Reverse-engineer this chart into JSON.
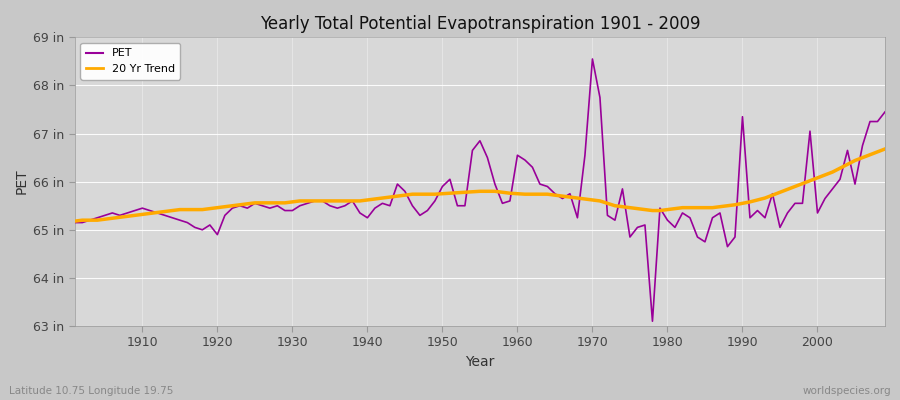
{
  "title": "Yearly Total Potential Evapotranspiration 1901 - 2009",
  "xlabel": "Year",
  "ylabel": "PET",
  "fig_bg_color": "#c8c8c8",
  "plot_bg_color": "#d8d8d8",
  "pet_color": "#990099",
  "trend_color": "#ffaa00",
  "pet_label": "PET",
  "trend_label": "20 Yr Trend",
  "ylim": [
    63,
    69
  ],
  "ytick_labels": [
    "63 in",
    "64 in",
    "65 in",
    "66 in",
    "67 in",
    "68 in",
    "69 in"
  ],
  "ytick_values": [
    63,
    64,
    65,
    66,
    67,
    68,
    69
  ],
  "footer_left": "Latitude 10.75 Longitude 19.75",
  "footer_right": "worldspecies.org",
  "years": [
    1901,
    1902,
    1903,
    1904,
    1905,
    1906,
    1907,
    1908,
    1909,
    1910,
    1911,
    1912,
    1913,
    1914,
    1915,
    1916,
    1917,
    1918,
    1919,
    1920,
    1921,
    1922,
    1923,
    1924,
    1925,
    1926,
    1927,
    1928,
    1929,
    1930,
    1931,
    1932,
    1933,
    1934,
    1935,
    1936,
    1937,
    1938,
    1939,
    1940,
    1941,
    1942,
    1943,
    1944,
    1945,
    1946,
    1947,
    1948,
    1949,
    1950,
    1951,
    1952,
    1953,
    1954,
    1955,
    1956,
    1957,
    1958,
    1959,
    1960,
    1961,
    1962,
    1963,
    1964,
    1965,
    1966,
    1967,
    1968,
    1969,
    1970,
    1971,
    1972,
    1973,
    1974,
    1975,
    1976,
    1977,
    1978,
    1979,
    1980,
    1981,
    1982,
    1983,
    1984,
    1985,
    1986,
    1987,
    1988,
    1989,
    1990,
    1991,
    1992,
    1993,
    1994,
    1995,
    1996,
    1997,
    1998,
    1999,
    2000,
    2001,
    2002,
    2003,
    2004,
    2005,
    2006,
    2007,
    2008,
    2009
  ],
  "pet": [
    65.15,
    65.15,
    65.2,
    65.25,
    65.3,
    65.35,
    65.3,
    65.35,
    65.4,
    65.45,
    65.4,
    65.35,
    65.3,
    65.25,
    65.2,
    65.15,
    65.05,
    65.0,
    65.1,
    64.9,
    65.3,
    65.45,
    65.5,
    65.45,
    65.55,
    65.5,
    65.45,
    65.5,
    65.4,
    65.4,
    65.5,
    65.55,
    65.6,
    65.6,
    65.5,
    65.45,
    65.5,
    65.6,
    65.35,
    65.25,
    65.45,
    65.55,
    65.5,
    65.95,
    65.8,
    65.5,
    65.3,
    65.4,
    65.6,
    65.9,
    66.05,
    65.5,
    65.5,
    66.65,
    66.85,
    66.5,
    65.95,
    65.55,
    65.6,
    66.55,
    66.45,
    66.3,
    65.95,
    65.9,
    65.75,
    65.65,
    65.75,
    65.25,
    66.55,
    68.55,
    67.75,
    65.3,
    65.2,
    65.85,
    64.85,
    65.05,
    65.1,
    63.1,
    65.45,
    65.2,
    65.05,
    65.35,
    65.25,
    64.85,
    64.75,
    65.25,
    65.35,
    64.65,
    64.85,
    67.35,
    65.25,
    65.4,
    65.25,
    65.75,
    65.05,
    65.35,
    65.55,
    65.55,
    67.05,
    65.35,
    65.65,
    65.85,
    66.05,
    66.65,
    65.95,
    66.75,
    67.25,
    67.25,
    67.45
  ],
  "trend": [
    65.18,
    65.2,
    65.2,
    65.2,
    65.22,
    65.24,
    65.26,
    65.28,
    65.3,
    65.32,
    65.34,
    65.36,
    65.38,
    65.4,
    65.42,
    65.42,
    65.42,
    65.42,
    65.44,
    65.46,
    65.48,
    65.5,
    65.52,
    65.54,
    65.56,
    65.56,
    65.56,
    65.56,
    65.56,
    65.58,
    65.6,
    65.6,
    65.6,
    65.6,
    65.6,
    65.6,
    65.6,
    65.6,
    65.6,
    65.62,
    65.64,
    65.66,
    65.68,
    65.7,
    65.72,
    65.74,
    65.74,
    65.74,
    65.74,
    65.75,
    65.76,
    65.77,
    65.78,
    65.79,
    65.8,
    65.8,
    65.8,
    65.78,
    65.76,
    65.75,
    65.74,
    65.74,
    65.74,
    65.74,
    65.72,
    65.7,
    65.68,
    65.66,
    65.64,
    65.62,
    65.6,
    65.55,
    65.5,
    65.48,
    65.46,
    65.44,
    65.42,
    65.4,
    65.4,
    65.42,
    65.44,
    65.46,
    65.46,
    65.46,
    65.46,
    65.46,
    65.48,
    65.5,
    65.52,
    65.55,
    65.58,
    65.62,
    65.66,
    65.72,
    65.78,
    65.84,
    65.9,
    65.96,
    66.02,
    66.08,
    66.14,
    66.2,
    66.28,
    66.36,
    66.44,
    66.5,
    66.56,
    66.62,
    66.68
  ]
}
